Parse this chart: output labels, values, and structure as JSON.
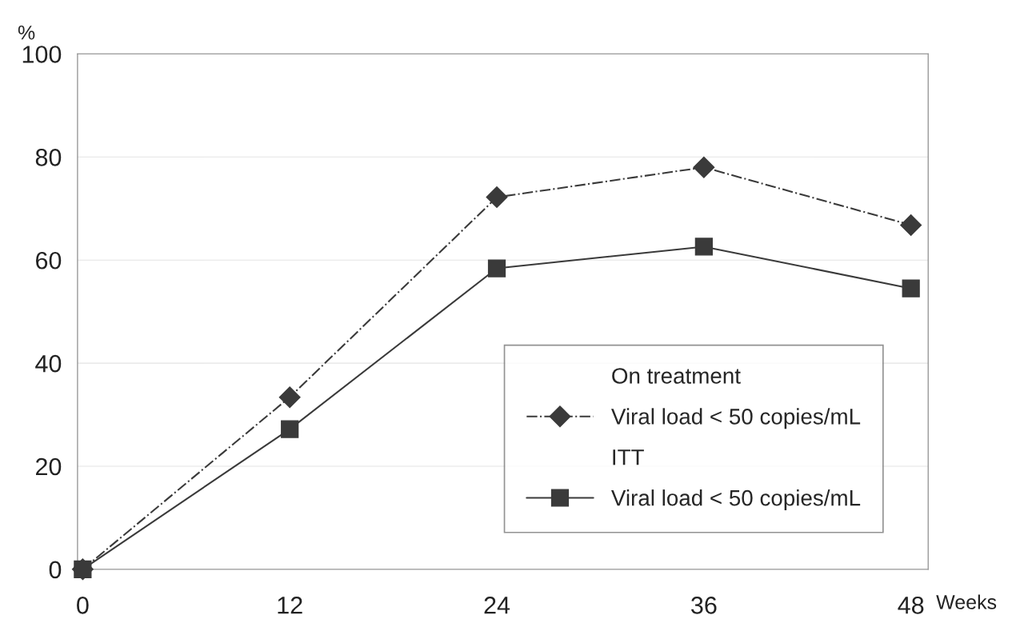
{
  "chart_data": {
    "type": "line",
    "ylabel": "%",
    "xlabel": "Weeks",
    "x": [
      0,
      12,
      24,
      36,
      48
    ],
    "series": [
      {
        "name": "Viral load < 50 copies/mL",
        "color": "#3a3a3a",
        "marker": "diamond",
        "line_style": "dashdot",
        "values": [
          0,
          33.4,
          72.2,
          78,
          66.8
        ]
      },
      {
        "name": "Viral load < 50 copies/mL",
        "color": "#3a3a3a",
        "marker": "square",
        "line_style": "solid",
        "values": [
          0,
          27.2,
          58.4,
          62.6,
          54.5
        ]
      }
    ],
    "annotations": [
      "On treatment",
      "ITT"
    ],
    "xlim": [
      -0.3,
      49
    ],
    "xticks": [
      0,
      12,
      24,
      36,
      48
    ],
    "ylim": [
      0,
      100
    ],
    "yticks": [
      0,
      20,
      40,
      60,
      80,
      100
    ],
    "grid": "y",
    "legend": "bottom right"
  }
}
